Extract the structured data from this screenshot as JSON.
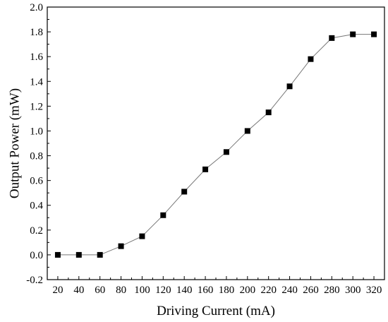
{
  "chart_data": {
    "type": "line",
    "title": "",
    "xlabel": "Driving Current (mA)",
    "ylabel": "Output Power (mW)",
    "xlim": [
      10,
      330
    ],
    "ylim": [
      -0.2,
      2.0
    ],
    "xticks": [
      20,
      40,
      60,
      80,
      100,
      120,
      140,
      160,
      180,
      200,
      220,
      240,
      260,
      280,
      300,
      320
    ],
    "xtick_labels": [
      "20",
      "40",
      "60",
      "80",
      "100",
      "120",
      "140",
      "160",
      "180",
      "200",
      "220",
      "240",
      "260",
      "280",
      "300",
      "320"
    ],
    "yticks": [
      -0.2,
      0.0,
      0.2,
      0.4,
      0.6,
      0.8,
      1.0,
      1.2,
      1.4,
      1.6,
      1.8,
      2.0
    ],
    "ytick_labels": [
      "-0.2",
      "0.0",
      "0.2",
      "0.4",
      "0.6",
      "0.8",
      "1.0",
      "1.2",
      "1.4",
      "1.6",
      "1.8",
      "2.0"
    ],
    "grid": false,
    "legend": "none",
    "marker": "square",
    "series": [
      {
        "x": [
          20,
          40,
          60,
          80,
          100,
          120,
          140,
          160,
          180,
          200,
          220,
          240,
          260,
          280,
          300,
          320
        ],
        "values": [
          0.0,
          0.0,
          0.0,
          0.07,
          0.15,
          0.32,
          0.51,
          0.69,
          0.83,
          1.0,
          1.15,
          1.36,
          1.58,
          1.75,
          1.78,
          1.78
        ],
        "color": "#000000"
      }
    ]
  }
}
